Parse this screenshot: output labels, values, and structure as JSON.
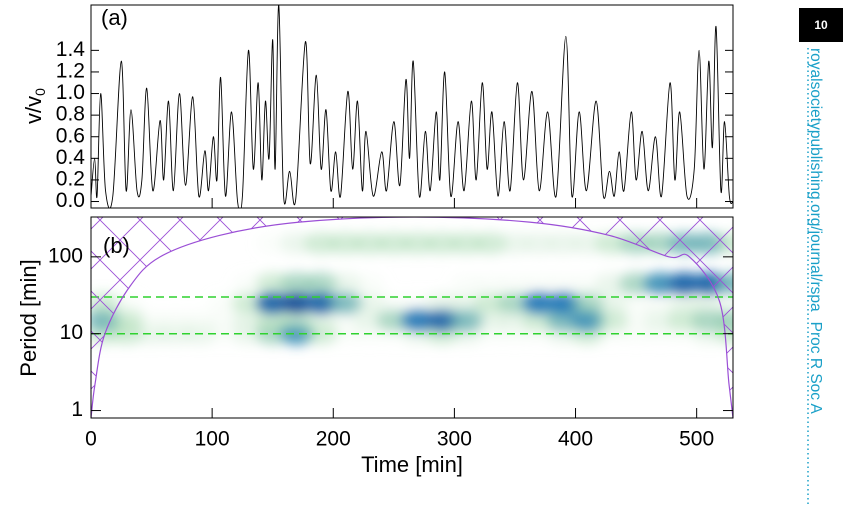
{
  "page_number": "10",
  "journal_url": "royalsocietypublishing.org/journal/rspa",
  "journal_name": "Proc R Soc A",
  "chart_data": [
    {
      "type": "line",
      "label": "(a)",
      "ylabel": {
        "text": "v/v",
        "sub": "0"
      },
      "color": "#000000",
      "xlim": [
        0,
        530
      ],
      "ylim": [
        -0.06,
        1.82
      ],
      "yticks": [
        {
          "value": 0,
          "label": "0.0"
        },
        0.2,
        0.4,
        0.6,
        0.8,
        {
          "value": 1,
          "label": "1.0"
        },
        1.2,
        1.4
      ],
      "x": [
        0,
        3,
        5,
        8,
        12,
        18,
        25,
        29,
        33,
        38,
        42,
        46,
        51,
        57,
        60,
        64,
        68,
        73,
        78,
        84,
        89,
        94,
        97,
        101,
        104,
        107,
        111,
        116,
        121,
        125,
        130,
        134,
        138,
        141,
        144,
        147,
        150,
        152,
        155,
        159,
        164,
        169,
        177,
        181,
        186,
        190,
        194,
        198,
        202,
        206,
        212,
        216,
        220,
        224,
        227,
        233,
        240,
        244,
        250,
        255,
        260,
        263,
        266,
        271,
        276,
        280,
        285,
        288,
        292,
        297,
        303,
        308,
        314,
        318,
        323,
        327,
        331,
        336,
        341,
        346,
        352,
        357,
        364,
        370,
        377,
        384,
        392,
        397,
        403,
        409,
        417,
        423,
        428,
        432,
        436,
        440,
        446,
        450,
        455,
        460,
        466,
        471,
        478,
        482,
        486,
        492,
        498,
        502,
        506,
        510,
        513,
        516,
        520,
        523,
        527,
        530
      ],
      "values": [
        0.05,
        0.4,
        0.05,
        1.0,
        0.1,
        0.05,
        1.3,
        0.1,
        0.85,
        0.1,
        0.2,
        1.05,
        0.1,
        0.75,
        0.2,
        0.93,
        0.1,
        1.0,
        0.15,
        0.97,
        0.05,
        0.47,
        0.1,
        0.6,
        0.2,
        1.15,
        0.05,
        0.83,
        0.0,
        0.05,
        1.4,
        0.3,
        1.1,
        0.2,
        0.93,
        0.4,
        1.5,
        0.3,
        1.82,
        0.05,
        0.28,
        0.02,
        1.48,
        0.35,
        1.17,
        0.3,
        0.85,
        0.1,
        0.46,
        0.05,
        1.02,
        0.3,
        0.93,
        0.1,
        0.65,
        0.05,
        0.46,
        0.1,
        0.74,
        0.15,
        1.13,
        0.4,
        1.3,
        0.05,
        0.65,
        0.1,
        0.83,
        0.2,
        1.2,
        0.05,
        0.74,
        0.1,
        0.93,
        0.2,
        1.1,
        0.3,
        0.83,
        0.05,
        0.74,
        0.1,
        1.1,
        0.2,
        1.02,
        0.1,
        0.83,
        0.05,
        1.53,
        0.05,
        0.83,
        0.1,
        0.93,
        0.05,
        0.28,
        0.05,
        0.46,
        0.1,
        0.83,
        0.2,
        0.65,
        0.1,
        0.6,
        0.05,
        1.1,
        0.2,
        0.83,
        0.05,
        0.3,
        1.4,
        0.3,
        1.3,
        0.5,
        1.62,
        0.1,
        0.74,
        0.05,
        0.0
      ]
    },
    {
      "type": "heatmap",
      "label": "(b)",
      "xlabel": "Time [min]",
      "ylabel": "Period [min]",
      "xlim": [
        0,
        530
      ],
      "ylim": [
        0.8,
        330
      ],
      "log_y": true,
      "xticks": [
        0,
        100,
        200,
        300,
        400,
        500
      ],
      "yticks": [
        1,
        10,
        100
      ],
      "x": [
        0,
        20,
        40,
        60,
        80,
        100,
        120,
        140,
        160,
        180,
        200,
        220,
        240,
        260,
        280,
        300,
        320,
        340,
        360,
        380,
        400,
        420,
        440,
        460,
        480,
        500,
        520
      ],
      "y": [
        10,
        15,
        25,
        45,
        150
      ],
      "z": [
        [
          0.3,
          0.3,
          0.2,
          0.2,
          0.2,
          0.1,
          0.2,
          0.4,
          0.6,
          0.3,
          0.1,
          0.1,
          0.1,
          0.2,
          0.3,
          0.2,
          0.1,
          0.1,
          0.1,
          0.2,
          0.3,
          0.1,
          0.1,
          0.1,
          0.1,
          0.2,
          0.3
        ],
        [
          0.5,
          0.3,
          0.1,
          0.1,
          0.1,
          0.1,
          0.2,
          0.3,
          0.3,
          0.2,
          0.1,
          0.2,
          0.4,
          0.7,
          0.8,
          0.5,
          0.2,
          0.2,
          0.3,
          0.5,
          0.6,
          0.3,
          0.1,
          0.2,
          0.3,
          0.4,
          0.4
        ],
        [
          0.3,
          0.1,
          0,
          0,
          0,
          0.1,
          0.3,
          0.8,
          0.9,
          0.8,
          0.5,
          0.2,
          0.1,
          0.1,
          0.2,
          0.2,
          0.3,
          0.4,
          0.7,
          0.7,
          0.4,
          0.2,
          0.1,
          0.1,
          0.2,
          0.2,
          0.1
        ],
        [
          0,
          0,
          0,
          0,
          0,
          0,
          0.1,
          0.3,
          0.4,
          0.4,
          0.2,
          0.1,
          0,
          0,
          0,
          0.1,
          0.1,
          0.1,
          0.1,
          0.1,
          0.1,
          0.2,
          0.4,
          0.6,
          0.8,
          0.8,
          0.5
        ],
        [
          0,
          0,
          0,
          0,
          0,
          0,
          0,
          0.1,
          0.2,
          0.3,
          0.3,
          0.3,
          0.3,
          0.3,
          0.3,
          0.3,
          0.3,
          0.2,
          0.2,
          0.2,
          0.2,
          0.3,
          0.4,
          0.4,
          0.5,
          0.5,
          0.3
        ]
      ],
      "coi": {
        "x": [
          0,
          3.3,
          11.5,
          32,
          57,
          106,
          172,
          267,
          362,
          428,
          477,
          494,
          519,
          526.7,
          530
        ],
        "values": [
          0.8,
          2.2,
          10,
          41,
          100,
          190,
          283,
          330,
          283,
          190,
          100,
          100,
          26,
          2.2,
          0.8
        ]
      },
      "coi_color": "#9b4fd6",
      "hlines": [
        10,
        30
      ],
      "hline_color": "#2fd22f"
    }
  ]
}
